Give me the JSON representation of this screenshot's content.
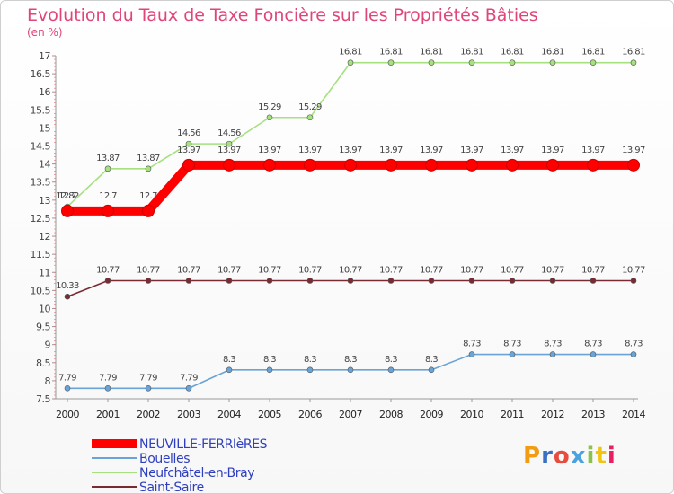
{
  "chart_data": {
    "type": "line",
    "title": "Evolution du Taux de Taxe Foncière sur les Propriétés Bâties",
    "ylabel": "(en %)",
    "xlabel": "",
    "x": [
      "2000",
      "2001",
      "2002",
      "2003",
      "2004",
      "2005",
      "2006",
      "2007",
      "2008",
      "2009",
      "2010",
      "2011",
      "2012",
      "2013",
      "2014"
    ],
    "ylim": [
      7.5,
      17
    ],
    "yticks": [
      "7.5",
      "8",
      "8.5",
      "9",
      "9.5",
      "10",
      "10.5",
      "11",
      "11.5",
      "12",
      "12.5",
      "13",
      "13.5",
      "14",
      "14.5",
      "15",
      "15.5",
      "16",
      "16.5",
      "17"
    ],
    "grid": false,
    "legend_position": "bottom-left",
    "series": [
      {
        "name": "NEUVILLE-FERRIèRES",
        "color": "#ff0000",
        "values": [
          12.7,
          12.7,
          12.7,
          13.97,
          13.97,
          13.97,
          13.97,
          13.97,
          13.97,
          13.97,
          13.97,
          13.97,
          13.97,
          13.97,
          13.97
        ],
        "labels": [
          "12.7",
          "12.7",
          "12.7",
          "13.97",
          "13.97",
          "13.97",
          "13.97",
          "13.97",
          "13.97",
          "13.97",
          "13.97",
          "13.97",
          "13.97",
          "13.97",
          "13.97"
        ]
      },
      {
        "name": "Bouelles",
        "color": "#6aa3d5",
        "values": [
          7.79,
          7.79,
          7.79,
          7.79,
          8.3,
          8.3,
          8.3,
          8.3,
          8.3,
          8.3,
          8.73,
          8.73,
          8.73,
          8.73,
          8.73
        ],
        "labels": [
          "7.79",
          "7.79",
          "7.79",
          "7.79",
          "8.3",
          "8.3",
          "8.3",
          "8.3",
          "8.3",
          "8.3",
          "8.73",
          "8.73",
          "8.73",
          "8.73",
          "8.73"
        ]
      },
      {
        "name": "Neufchâtel-en-Bray",
        "color": "#a6e07f",
        "values": [
          12.82,
          13.87,
          13.87,
          14.56,
          14.56,
          15.29,
          15.29,
          16.81,
          16.81,
          16.81,
          16.81,
          16.81,
          16.81,
          16.81,
          16.81
        ],
        "labels": [
          "12.82",
          "13.87",
          "13.87",
          "14.56",
          "14.56",
          "15.29",
          "15.29",
          "16.81",
          "16.81",
          "16.81",
          "16.81",
          "16.81",
          "16.81",
          "16.81",
          "16.81"
        ]
      },
      {
        "name": "Saint-Saire",
        "color": "#7a2a33",
        "values": [
          10.33,
          10.77,
          10.77,
          10.77,
          10.77,
          10.77,
          10.77,
          10.77,
          10.77,
          10.77,
          10.77,
          10.77,
          10.77,
          10.77,
          10.77
        ],
        "labels": [
          "10.33",
          "10.77",
          "10.77",
          "10.77",
          "10.77",
          "10.77",
          "10.77",
          "10.77",
          "10.77",
          "10.77",
          "10.77",
          "10.77",
          "10.77",
          "10.77",
          "10.77"
        ]
      }
    ]
  },
  "logo": {
    "text": "Proxiti"
  }
}
